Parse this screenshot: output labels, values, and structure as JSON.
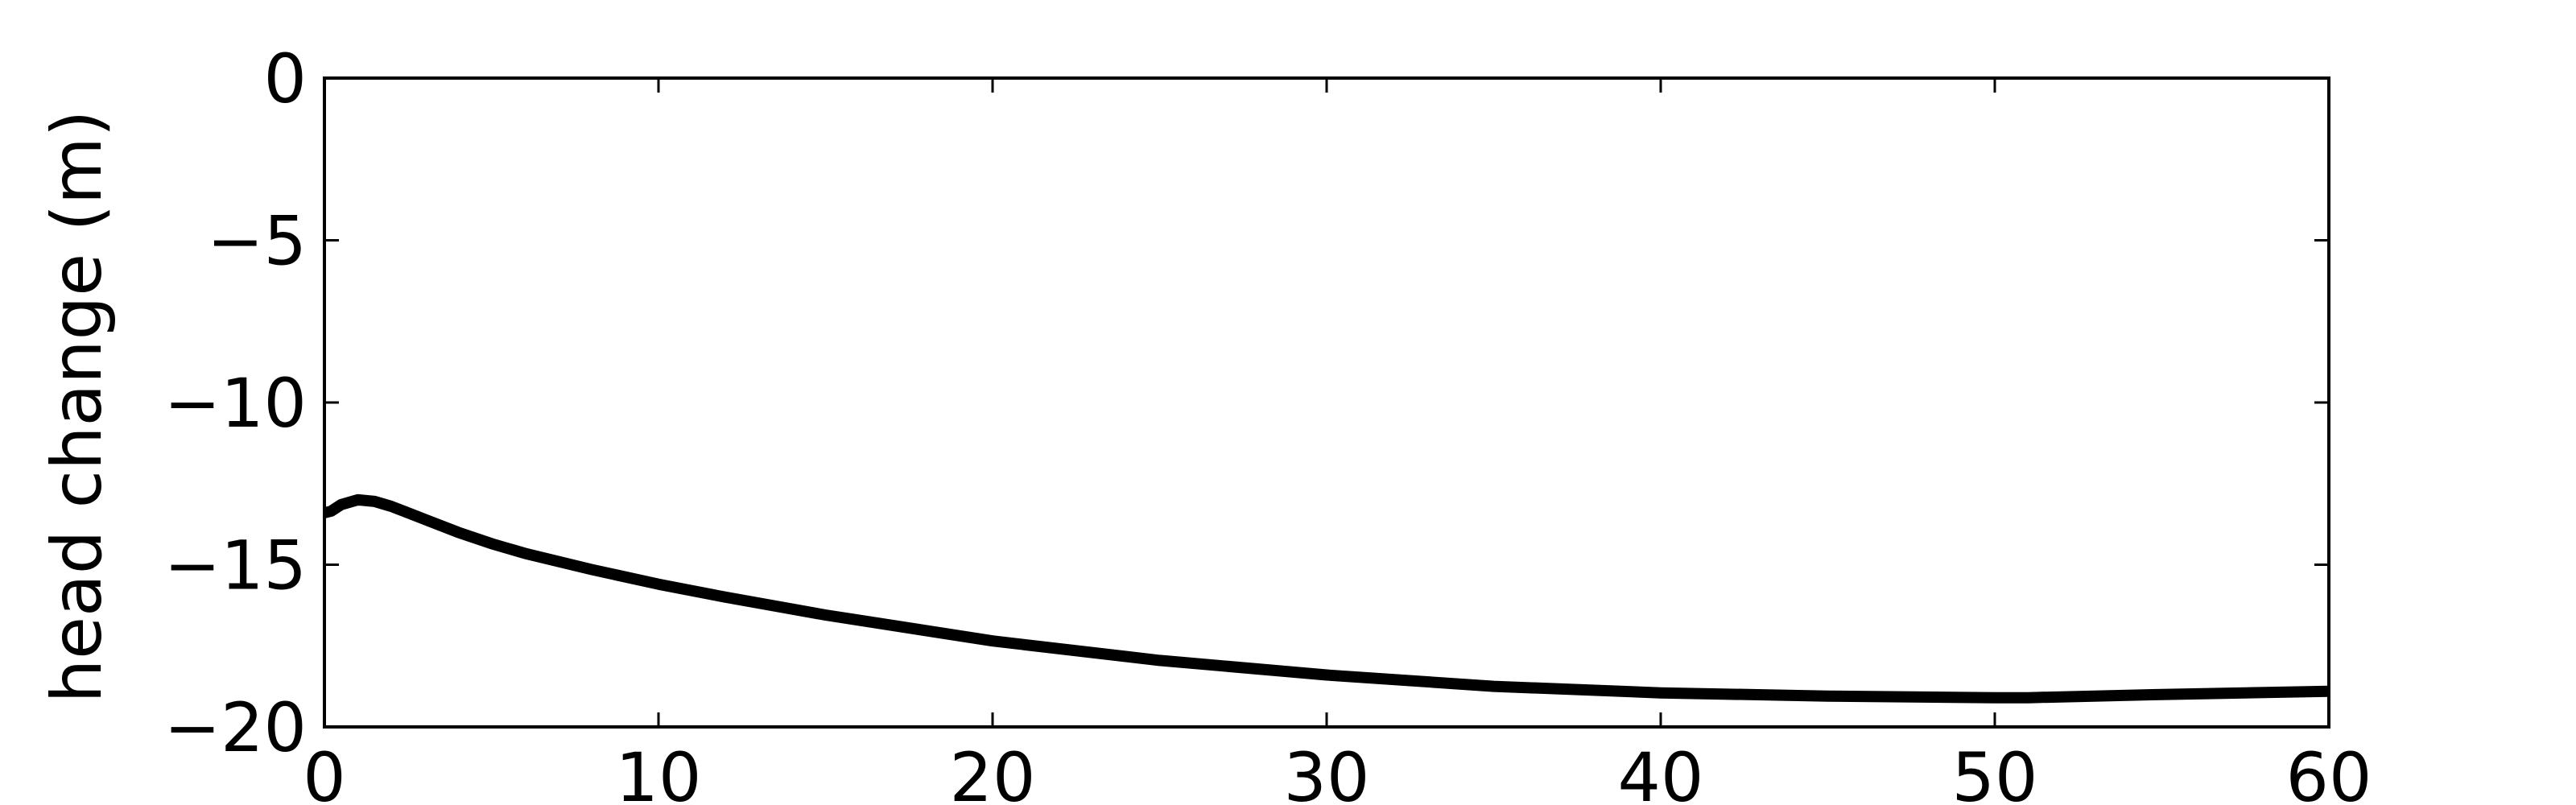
{
  "chart_data": {
    "type": "line",
    "title": "",
    "xlabel": "",
    "ylabel": "head change (m)",
    "xlim": [
      0,
      60
    ],
    "ylim": [
      -20,
      0
    ],
    "xticks": [
      0,
      10,
      20,
      30,
      40,
      50,
      60
    ],
    "yticks": [
      0,
      -5,
      -10,
      -15,
      -20
    ],
    "xtick_labels": [
      "0",
      "10",
      "20",
      "30",
      "40",
      "50",
      "60"
    ],
    "ytick_labels": [
      "0",
      "−5",
      "−10",
      "−15",
      "−20"
    ],
    "grid": false,
    "series": [
      {
        "color": "#000000",
        "x": [
          0,
          0.2,
          0.5,
          1,
          1.5,
          2,
          3,
          4,
          5,
          6,
          8,
          10,
          12,
          15,
          20,
          25,
          30,
          35,
          40,
          45,
          50,
          51,
          55,
          60
        ],
        "y": [
          -13.4,
          -13.35,
          -13.15,
          -13.0,
          -13.05,
          -13.2,
          -13.6,
          -14.0,
          -14.35,
          -14.65,
          -15.15,
          -15.6,
          -16.0,
          -16.55,
          -17.35,
          -17.95,
          -18.4,
          -18.75,
          -18.95,
          -19.05,
          -19.1,
          -19.1,
          -19.0,
          -18.9
        ]
      }
    ]
  }
}
